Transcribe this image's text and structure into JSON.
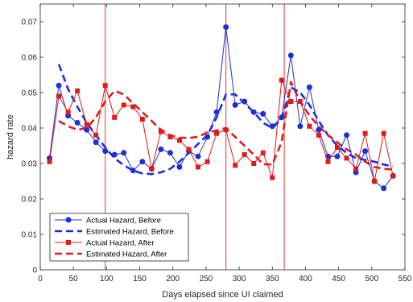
{
  "chart_data": {
    "type": "line",
    "title": "",
    "xlabel": "Days elapsed since UI claimed",
    "ylabel": "hazard rate",
    "xlim": [
      0,
      550
    ],
    "ylim": [
      0,
      0.075
    ],
    "xticks": [
      0,
      50,
      100,
      150,
      200,
      250,
      300,
      350,
      400,
      450,
      500,
      550
    ],
    "xtick_labels": [
      "0",
      "50",
      "100",
      "150",
      "200",
      "250",
      "300",
      "350",
      "400",
      "450",
      "500",
      "550"
    ],
    "yticks": [
      0,
      0.01,
      0.02,
      0.03,
      0.04,
      0.05,
      0.06,
      0.07
    ],
    "ytick_labels": [
      "0",
      "0.01",
      "0.02",
      "0.03",
      "0.04",
      "0.05",
      "0.06",
      "0.07"
    ],
    "grid": false,
    "legend_position": "bottom-left",
    "vlines": [
      {
        "x": 98,
        "color": "#e34a4a"
      },
      {
        "x": 280,
        "color": "#e34a4a"
      },
      {
        "x": 368,
        "color": "#e34a4a"
      }
    ],
    "series": [
      {
        "name": "Actual Hazard, Before",
        "color": "#1f2fd6",
        "style": "solid",
        "marker": "circle",
        "x": [
          14,
          28,
          42,
          56,
          70,
          84,
          98,
          112,
          126,
          140,
          154,
          168,
          182,
          196,
          210,
          224,
          238,
          252,
          266,
          280,
          294,
          308,
          322,
          336,
          350,
          364,
          378,
          392,
          406,
          420,
          434,
          448,
          462,
          476,
          490,
          504,
          518,
          532
        ],
        "y": [
          0.0315,
          0.052,
          0.0435,
          0.0415,
          0.0395,
          0.036,
          0.0335,
          0.0325,
          0.033,
          0.028,
          0.0305,
          0.0285,
          0.034,
          0.033,
          0.029,
          0.0335,
          0.032,
          0.0375,
          0.0445,
          0.0685,
          0.0465,
          0.0475,
          0.0445,
          0.044,
          0.0405,
          0.043,
          0.0605,
          0.0405,
          0.0515,
          0.0395,
          0.032,
          0.032,
          0.038,
          0.0275,
          0.0335,
          0.025,
          0.023,
          0.0265
        ]
      },
      {
        "name": "Estimated Hazard, Before",
        "color": "#1f2fd6",
        "style": "dashed",
        "marker": "none",
        "x": [
          28,
          42,
          56,
          70,
          84,
          98,
          112,
          126,
          140,
          154,
          168,
          182,
          196,
          210,
          224,
          238,
          252,
          266,
          280,
          294,
          308,
          322,
          336,
          350,
          364,
          378,
          392,
          406,
          420,
          434,
          448,
          462,
          476,
          490,
          504,
          518,
          532
        ],
        "y": [
          0.058,
          0.051,
          0.046,
          0.0415,
          0.038,
          0.0345,
          0.0315,
          0.0295,
          0.028,
          0.0272,
          0.027,
          0.0275,
          0.0285,
          0.0305,
          0.033,
          0.0355,
          0.038,
          0.043,
          0.0495,
          0.0495,
          0.047,
          0.0445,
          0.0415,
          0.04,
          0.0425,
          0.0515,
          0.05,
          0.0465,
          0.042,
          0.038,
          0.035,
          0.033,
          0.0315,
          0.031,
          0.0305,
          0.0297,
          0.0292
        ]
      },
      {
        "name": "Actual Hazard, After",
        "color": "#e01b1b",
        "style": "solid",
        "marker": "square",
        "x": [
          14,
          28,
          42,
          56,
          70,
          84,
          98,
          112,
          126,
          140,
          154,
          168,
          182,
          196,
          210,
          224,
          238,
          252,
          266,
          280,
          294,
          308,
          322,
          336,
          350,
          364,
          378,
          392,
          406,
          420,
          434,
          448,
          462,
          476,
          490,
          504,
          518,
          532
        ],
        "y": [
          0.0305,
          0.049,
          0.0445,
          0.0505,
          0.041,
          0.038,
          0.052,
          0.043,
          0.0465,
          0.046,
          0.0425,
          0.0285,
          0.039,
          0.0375,
          0.0365,
          0.034,
          0.029,
          0.0305,
          0.0385,
          0.0395,
          0.0295,
          0.0325,
          0.03,
          0.033,
          0.026,
          0.0535,
          0.0475,
          0.0475,
          0.0405,
          0.038,
          0.0305,
          0.0345,
          0.0315,
          0.0285,
          0.0385,
          0.025,
          0.0385,
          0.0265
        ]
      },
      {
        "name": "Estimated Hazard, After",
        "color": "#e01b1b",
        "style": "dashed",
        "marker": "none",
        "x": [
          28,
          42,
          56,
          70,
          84,
          98,
          112,
          126,
          140,
          154,
          168,
          182,
          196,
          210,
          224,
          238,
          252,
          266,
          280,
          294,
          308,
          322,
          336,
          350,
          364,
          378,
          392,
          406,
          420,
          434,
          448,
          462,
          476,
          490,
          504,
          518,
          532
        ],
        "y": [
          0.042,
          0.0405,
          0.0395,
          0.04,
          0.043,
          0.0475,
          0.0505,
          0.0495,
          0.047,
          0.0445,
          0.042,
          0.0395,
          0.038,
          0.0373,
          0.0372,
          0.0375,
          0.0388,
          0.0393,
          0.04,
          0.0375,
          0.035,
          0.0325,
          0.0298,
          0.0297,
          0.036,
          0.053,
          0.0475,
          0.0435,
          0.0405,
          0.038,
          0.036,
          0.034,
          0.0325,
          0.0305,
          0.029,
          0.0285,
          0.0283
        ]
      }
    ]
  }
}
